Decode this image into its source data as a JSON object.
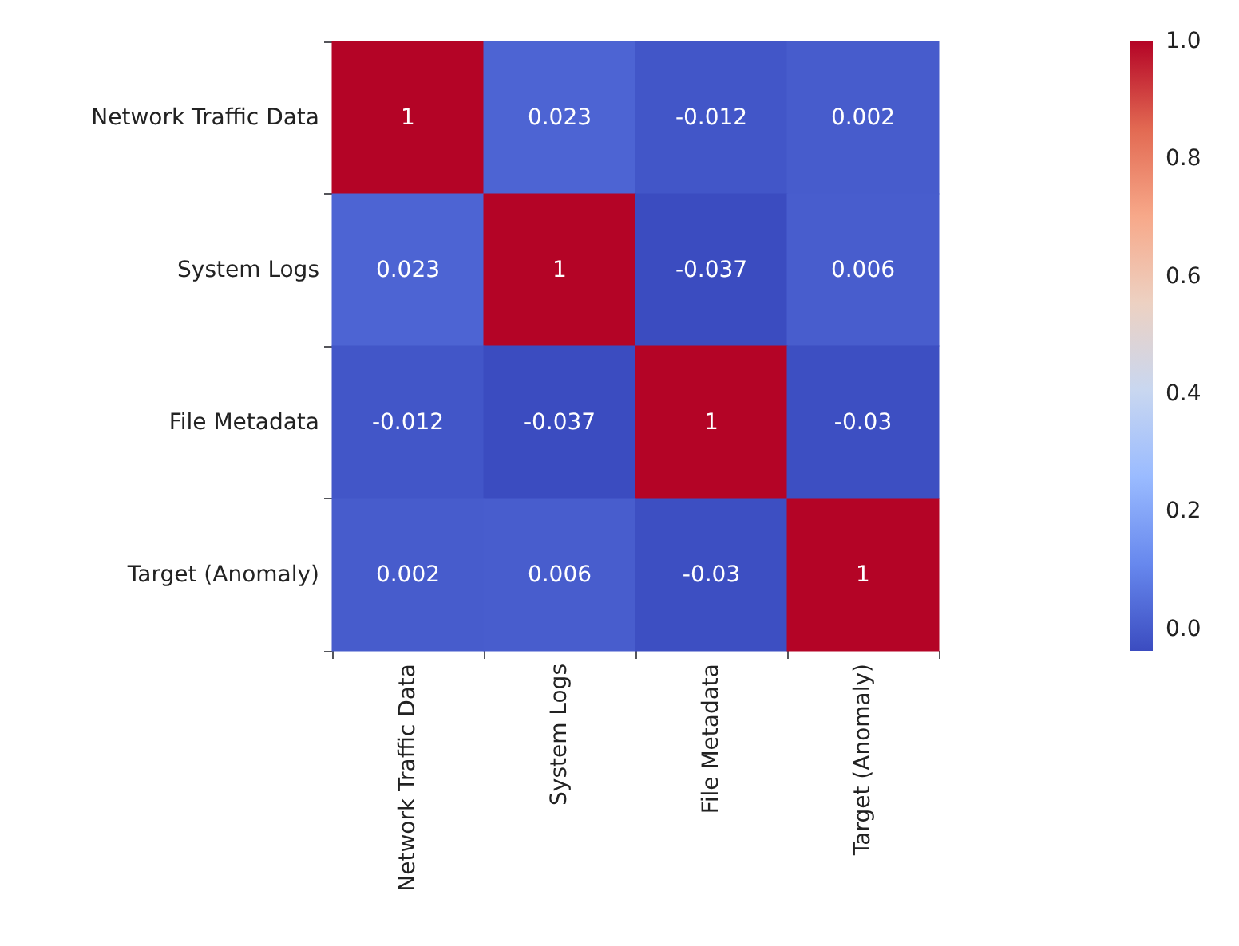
{
  "chart_data": {
    "type": "heatmap",
    "categories": [
      "Network Traffic Data",
      "System Logs",
      "File Metadata",
      "Target (Anomaly)"
    ],
    "y_categories": [
      "Network Traffic Data",
      "System Logs",
      "File Metadata",
      "Target (Anomaly)"
    ],
    "cells": [
      [
        1,
        0.023,
        -0.012,
        0.002
      ],
      [
        0.023,
        1,
        -0.037,
        0.006
      ],
      [
        -0.012,
        -0.037,
        1,
        -0.03
      ],
      [
        0.002,
        0.006,
        -0.03,
        1
      ]
    ],
    "data_labels": true,
    "clim": [
      -0.037,
      1
    ],
    "cticks": [
      {
        "value": 0,
        "label": "0.0"
      },
      {
        "value": 0.2,
        "label": "0.2"
      },
      {
        "value": 0.4,
        "label": "0.4"
      },
      {
        "value": 0.6,
        "label": "0.6"
      },
      {
        "value": 0.8,
        "label": "0.8"
      },
      {
        "value": 1,
        "label": "1.0"
      }
    ]
  }
}
